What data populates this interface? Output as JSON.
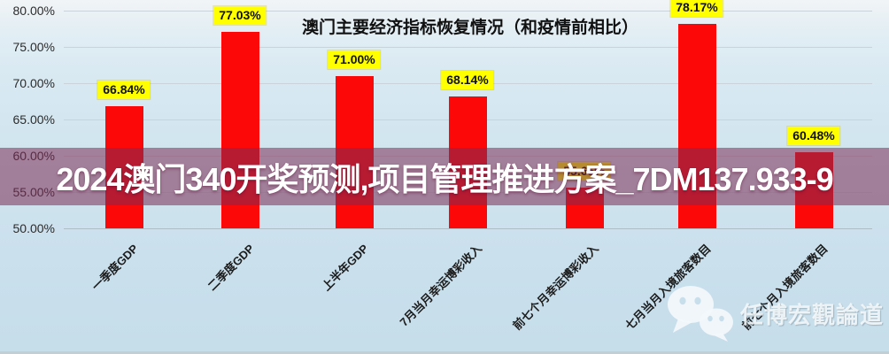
{
  "chart_data": {
    "type": "bar",
    "title": "澳门主要经济指标恢复情况（和疫情前相比）",
    "categories": [
      "一季度GDP",
      "二季度GDP",
      "上半年GDP",
      "7月当月幸运博彩收入",
      "前七个月幸运博彩收入",
      "七月当月入境旅客数目",
      "前七个月入境旅客数目"
    ],
    "values": [
      66.84,
      77.03,
      71.0,
      68.14,
      55.65,
      78.17,
      60.48
    ],
    "value_labels": [
      "66.84%",
      "77.03%",
      "71.00%",
      "68.14%",
      "55.65%",
      "78.17%",
      "60.48%"
    ],
    "xlabel": "",
    "ylabel": "",
    "ylim": [
      50,
      80
    ],
    "ytick_labels": [
      "80.00%",
      "75.00%",
      "70.00%",
      "65.00%",
      "60.00%",
      "55.00%",
      "50.00%"
    ],
    "ytick_values": [
      80,
      75,
      70,
      65,
      60,
      55,
      50
    ],
    "grid": true,
    "legend": false,
    "bar_color": "#fd0808",
    "value_label_bg": "#ffff00"
  },
  "overlay_banner": {
    "text": "2024澳门340开奖预测,项目管理推进方案_7DM137.933-9"
  },
  "watermark": {
    "icon": "wechat-icon",
    "text": "任博宏觀論道"
  }
}
